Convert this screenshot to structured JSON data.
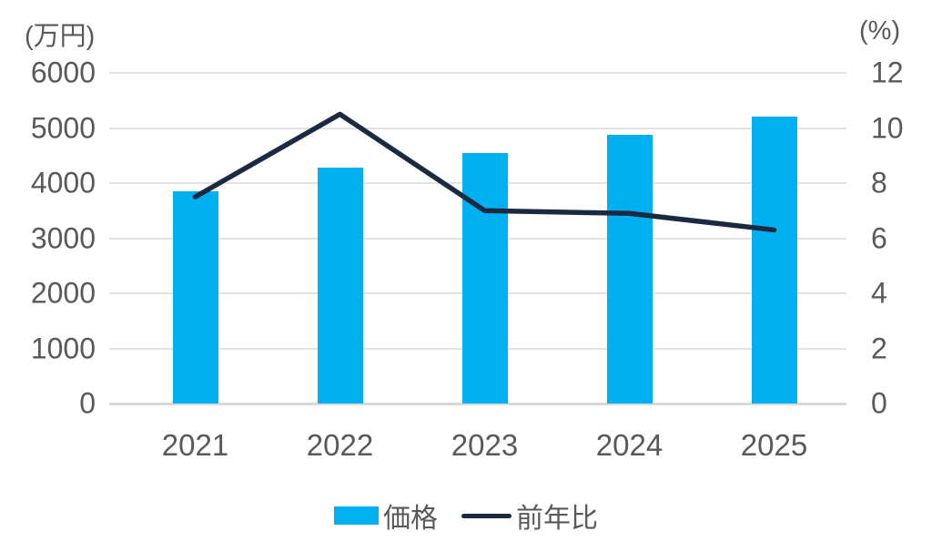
{
  "chart_data": {
    "type": "combo-bar-line",
    "title": "",
    "categories": [
      "2021",
      "2022",
      "2023",
      "2024",
      "2025"
    ],
    "series": [
      {
        "name": "価格",
        "type": "bar",
        "axis": "left",
        "values": [
          3850,
          4280,
          4550,
          4880,
          5200
        ]
      },
      {
        "name": "前年比",
        "type": "line",
        "axis": "right",
        "values": [
          7.5,
          10.5,
          7.0,
          6.9,
          6.3
        ]
      }
    ],
    "left_axis": {
      "label": "(万円)",
      "min": 0,
      "max": 6000,
      "ticks": [
        6000,
        5000,
        4000,
        3000,
        2000,
        1000,
        0
      ]
    },
    "right_axis": {
      "label": "(%)",
      "min": 0,
      "max": 12,
      "ticks": [
        12,
        10,
        8,
        6,
        4,
        2,
        0
      ]
    },
    "grid": true,
    "legend_position": "bottom"
  },
  "colors": {
    "bar": "#00B0F0",
    "line": "#1B2A41",
    "text": "#595959",
    "gridline": "#E2E2E2",
    "axis_line": "#D9D9D9",
    "background": "#FFFFFF"
  }
}
